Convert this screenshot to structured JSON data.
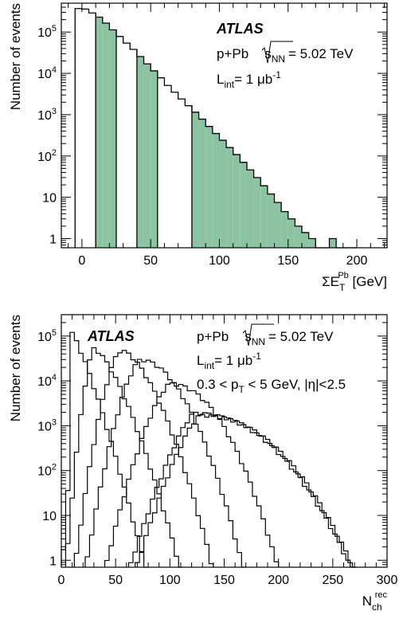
{
  "chart_data": [
    {
      "type": "bar",
      "subtype": "step-histogram",
      "experiment": "ATLAS",
      "collision": "p+Pb",
      "energy_symbol": "s",
      "energy_sub": "NN",
      "energy_value": "= 5.02 TeV",
      "lumi_label": "L",
      "lumi_sub": "int",
      "lumi_value": "= 1 μb",
      "lumi_exp": "-1",
      "xlabel_main": "ΣE",
      "xlabel_sub": "T",
      "xlabel_sup": "Pb",
      "xlabel_unit": " [GeV]",
      "ylabel": "Number of events",
      "xlim": [
        -15,
        222
      ],
      "ylim": [
        0.6,
        500000
      ],
      "yscale": "log",
      "xticks": [
        0,
        50,
        100,
        150,
        200
      ],
      "yticks": [
        {
          "value": 1,
          "label": "1"
        },
        {
          "value": 10,
          "label": "10"
        },
        {
          "value": 100,
          "base": "10",
          "exp": "2"
        },
        {
          "value": 1000,
          "base": "10",
          "exp": "3"
        },
        {
          "value": 10000,
          "base": "10",
          "exp": "4"
        },
        {
          "value": 100000,
          "base": "10",
          "exp": "5"
        }
      ],
      "fill_color": "#8cc4a2",
      "bin_width": 5,
      "bin_start": -5,
      "values": [
        370000,
        360000,
        290000,
        230000,
        165000,
        113000,
        78000,
        54000,
        38000,
        25500,
        17000,
        11500,
        7800,
        5100,
        3500,
        2400,
        1650,
        1150,
        780,
        520,
        350,
        240,
        160,
        108,
        70,
        46,
        30,
        19,
        12,
        7.5,
        4.5,
        3,
        2,
        1.4,
        1,
        0,
        0,
        1,
        0,
        0,
        0
      ],
      "filled_ranges": [
        [
          10,
          25
        ],
        [
          40,
          55
        ],
        [
          80,
          195
        ]
      ]
    },
    {
      "type": "line",
      "subtype": "step-histogram",
      "experiment": "ATLAS",
      "collision": "p+Pb",
      "energy_symbol": "s",
      "energy_sub": "NN",
      "energy_value": "= 5.02 TeV",
      "lumi_label": "L",
      "lumi_sub": "int",
      "lumi_value": "= 1 μb",
      "lumi_exp": "-1",
      "cut_text_pre": "0.3 < p",
      "cut_text_sub": "T",
      "cut_text_post": " < 5 GeV, |η|<2.5",
      "xlabel_main": "N",
      "xlabel_sub": "ch",
      "xlabel_sup": "rec",
      "ylabel": "Number of events",
      "xlim": [
        0,
        300
      ],
      "ylim": [
        0.7,
        300000
      ],
      "yscale": "log",
      "xticks": [
        0,
        50,
        100,
        150,
        200,
        250,
        300
      ],
      "yticks": [
        {
          "value": 1,
          "label": "1"
        },
        {
          "value": 10,
          "label": "10"
        },
        {
          "value": 100,
          "base": "10",
          "exp": "2"
        },
        {
          "value": 1000,
          "base": "10",
          "exp": "3"
        },
        {
          "value": 10000,
          "base": "10",
          "exp": "4"
        },
        {
          "value": 100000,
          "base": "10",
          "exp": "5"
        }
      ],
      "bin_width": 4,
      "series": [
        {
          "peak_x": 8,
          "peak_y": 140000,
          "left_width": 0.3,
          "right_width": 1.25,
          "xmin": 0,
          "xmax": 78
        },
        {
          "peak_x": 30,
          "peak_y": 55000,
          "left_width": 1.55,
          "right_width": 1.45,
          "xmin": 4,
          "xmax": 110
        },
        {
          "peak_x": 55,
          "peak_y": 50000,
          "left_width": 1.6,
          "right_width": 1.65,
          "xmin": 12,
          "xmax": 140
        },
        {
          "peak_x": 73,
          "peak_y": 31000,
          "left_width": 1.55,
          "right_width": 1.95,
          "xmin": 22,
          "xmax": 168
        },
        {
          "peak_x": 100,
          "peak_y": 9000,
          "left_width": 1.45,
          "right_width": 2.1,
          "xmin": 40,
          "xmax": 200
        },
        {
          "peak_x": 122,
          "peak_y": 2000,
          "left_width": 1.3,
          "right_width": 2.2,
          "xmin": 62,
          "xmax": 268
        },
        {
          "peak_x": 128,
          "peak_y": 1800,
          "left_width": 1.35,
          "right_width": 2.2,
          "xmin": 68,
          "xmax": 270
        }
      ]
    }
  ]
}
